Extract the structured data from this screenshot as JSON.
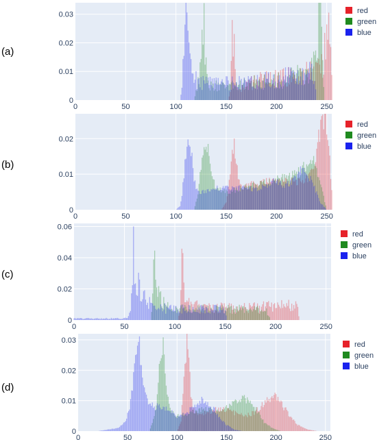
{
  "figure": {
    "colors": {
      "red": "#e6222a",
      "green": "#1f8a1f",
      "blue": "#1a22ee",
      "plot_bg": "#e5ecf6",
      "grid": "#ffffff"
    },
    "legend_entries": [
      "red",
      "green",
      "blue"
    ]
  },
  "chart_data": [
    {
      "type": "bar",
      "label": "(a)",
      "xlim": [
        0,
        255
      ],
      "ylim": [
        0,
        0.034
      ],
      "xticks": [
        0,
        50,
        100,
        150,
        200,
        250
      ],
      "yticks": [
        0,
        0.01,
        0.02,
        0.03
      ],
      "ytick_labels": [
        "0",
        "0.01",
        "0.02",
        "0.03"
      ],
      "series": [
        {
          "name": "red",
          "color": "#e6222a",
          "x": [
            152,
            154,
            156,
            158,
            160,
            165,
            175,
            185,
            195,
            205,
            215,
            225,
            235,
            240,
            245,
            248,
            250,
            252,
            254,
            255
          ],
          "values": [
            0,
            0.004,
            0.02,
            0.018,
            0.004,
            0.005,
            0.006,
            0.007,
            0.007,
            0.008,
            0.008,
            0.009,
            0.01,
            0.01,
            0.012,
            0.018,
            0.025,
            0.03,
            0.028,
            0.01
          ]
        },
        {
          "name": "green",
          "color": "#1f8a1f",
          "x": [
            118,
            122,
            125,
            127,
            129,
            131,
            135,
            145,
            155,
            165,
            175,
            185,
            195,
            205,
            215,
            225,
            232,
            236,
            240,
            242,
            244,
            246,
            248
          ],
          "values": [
            0,
            0.006,
            0.012,
            0.031,
            0.02,
            0.007,
            0.005,
            0.005,
            0.005,
            0.005,
            0.006,
            0.006,
            0.007,
            0.007,
            0.008,
            0.009,
            0.01,
            0.012,
            0.02,
            0.03,
            0.03,
            0.012,
            0
          ]
        },
        {
          "name": "blue",
          "color": "#1a22ee",
          "x": [
            104,
            106,
            108,
            110,
            112,
            114,
            116,
            120,
            130,
            140,
            150,
            160,
            170,
            180,
            190,
            200,
            210,
            220,
            228,
            232,
            236,
            238,
            240
          ],
          "values": [
            0,
            0.004,
            0.016,
            0.026,
            0.021,
            0.012,
            0.008,
            0.007,
            0.006,
            0.006,
            0.006,
            0.006,
            0.006,
            0.006,
            0.007,
            0.007,
            0.008,
            0.008,
            0.009,
            0.01,
            0.011,
            0.006,
            0
          ]
        }
      ]
    },
    {
      "type": "bar",
      "label": "(b)",
      "xlim": [
        0,
        255
      ],
      "ylim": [
        0,
        0.027
      ],
      "xticks": [
        0,
        50,
        100,
        150,
        200,
        250
      ],
      "yticks": [
        0,
        0.01,
        0.02
      ],
      "ytick_labels": [
        "0",
        "0.01",
        "0.02"
      ],
      "series": [
        {
          "name": "red",
          "color": "#e6222a",
          "x": [
            145,
            150,
            153,
            156,
            158,
            160,
            163,
            166,
            175,
            190,
            205,
            220,
            232,
            238,
            242,
            245,
            248,
            250,
            252,
            254,
            255
          ],
          "values": [
            0,
            0.002,
            0.008,
            0.016,
            0.019,
            0.014,
            0.008,
            0.006,
            0.007,
            0.008,
            0.008,
            0.008,
            0.009,
            0.013,
            0.02,
            0.025,
            0.026,
            0.024,
            0.018,
            0.01,
            0.006
          ]
        },
        {
          "name": "green",
          "color": "#1f8a1f",
          "x": [
            118,
            122,
            125,
            128,
            130,
            132,
            135,
            140,
            150,
            165,
            180,
            195,
            205,
            212,
            220,
            228,
            235,
            240,
            245,
            250
          ],
          "values": [
            0,
            0.004,
            0.012,
            0.018,
            0.02,
            0.017,
            0.01,
            0.006,
            0.005,
            0.006,
            0.007,
            0.008,
            0.009,
            0.009,
            0.01,
            0.012,
            0.014,
            0.012,
            0.006,
            0
          ]
        },
        {
          "name": "blue",
          "color": "#1a22ee",
          "x": [
            100,
            104,
            106,
            108,
            110,
            112,
            114,
            116,
            118,
            122,
            130,
            140,
            150,
            160,
            170,
            180,
            190,
            198,
            205,
            212,
            220,
            226,
            232,
            238,
            244,
            250
          ],
          "values": [
            0,
            0.001,
            0.004,
            0.01,
            0.016,
            0.021,
            0.02,
            0.014,
            0.008,
            0.005,
            0.005,
            0.006,
            0.006,
            0.006,
            0.006,
            0.006,
            0.007,
            0.008,
            0.007,
            0.007,
            0.009,
            0.012,
            0.01,
            0.006,
            0.002,
            0
          ]
        }
      ]
    },
    {
      "type": "bar",
      "label": "(c)",
      "xlim": [
        0,
        255
      ],
      "ylim": [
        0,
        0.062
      ],
      "xticks": [
        0,
        50,
        100,
        150,
        200,
        250
      ],
      "yticks": [
        0,
        0.02,
        0.04,
        0.06
      ],
      "ytick_labels": [
        "0",
        "0.02",
        "0.04",
        "0.06"
      ],
      "series": [
        {
          "name": "red",
          "color": "#e6222a",
          "x": [
            103,
            105,
            107,
            108,
            109,
            111,
            114,
            120,
            130,
            140,
            150,
            160,
            170,
            180,
            190,
            200,
            210,
            218,
            222,
            224
          ],
          "values": [
            0,
            0.01,
            0.056,
            0.045,
            0.022,
            0.012,
            0.01,
            0.009,
            0.008,
            0.008,
            0.008,
            0.008,
            0.008,
            0.008,
            0.009,
            0.009,
            0.009,
            0.009,
            0.008,
            0
          ]
        },
        {
          "name": "green",
          "color": "#1f8a1f",
          "x": [
            76,
            78,
            80,
            81,
            82,
            84,
            87,
            90,
            95,
            105,
            120,
            135,
            150,
            165,
            180,
            190,
            195
          ],
          "values": [
            0,
            0.012,
            0.05,
            0.038,
            0.024,
            0.02,
            0.014,
            0.01,
            0.008,
            0.007,
            0.007,
            0.007,
            0.007,
            0.007,
            0.007,
            0.007,
            0
          ]
        },
        {
          "name": "blue",
          "color": "#1a22ee",
          "x": [
            0,
            10,
            20,
            30,
            40,
            50,
            54,
            56,
            58,
            59,
            60,
            62,
            64,
            67,
            70,
            75,
            85,
            95,
            105,
            115,
            125,
            135,
            145,
            150,
            152
          ],
          "values": [
            0.001,
            0.001,
            0.001,
            0.001,
            0.001,
            0.001,
            0.002,
            0.01,
            0.03,
            0.056,
            0.04,
            0.028,
            0.022,
            0.02,
            0.017,
            0.012,
            0.008,
            0.007,
            0.007,
            0.007,
            0.007,
            0.007,
            0.007,
            0.006,
            0
          ]
        }
      ]
    },
    {
      "type": "bar",
      "label": "(d)",
      "xlim": [
        0,
        255
      ],
      "ylim": [
        0,
        0.032
      ],
      "xticks": [
        0,
        50,
        100,
        150,
        200,
        250
      ],
      "yticks": [
        0,
        0.01,
        0.02,
        0.03
      ],
      "ytick_labels": [
        "0",
        "0.01",
        "0.02",
        "0.03"
      ],
      "series": [
        {
          "name": "red",
          "color": "#e6222a",
          "x": [
            100,
            104,
            106,
            108,
            110,
            112,
            114,
            116,
            120,
            128,
            138,
            148,
            158,
            168,
            178,
            188,
            196,
            200,
            204,
            212,
            222,
            232,
            242
          ],
          "values": [
            0,
            0.003,
            0.012,
            0.022,
            0.029,
            0.022,
            0.012,
            0.007,
            0.006,
            0.006,
            0.007,
            0.007,
            0.006,
            0.005,
            0.006,
            0.009,
            0.011,
            0.011,
            0.01,
            0.006,
            0.002,
            0.0005,
            0
          ]
        },
        {
          "name": "green",
          "color": "#1f8a1f",
          "x": [
            72,
            78,
            82,
            84,
            86,
            88,
            90,
            94,
            102,
            112,
            122,
            132,
            142,
            152,
            160,
            166,
            172,
            180,
            188,
            196,
            205
          ],
          "values": [
            0,
            0.006,
            0.02,
            0.027,
            0.028,
            0.022,
            0.012,
            0.006,
            0.005,
            0.006,
            0.007,
            0.007,
            0.007,
            0.008,
            0.01,
            0.011,
            0.01,
            0.007,
            0.003,
            0.001,
            0
          ]
        },
        {
          "name": "blue",
          "color": "#1a22ee",
          "x": [
            20,
            30,
            40,
            48,
            52,
            56,
            58,
            60,
            62,
            64,
            66,
            70,
            76,
            82,
            90,
            100,
            110,
            120,
            126,
            132,
            140,
            150,
            158,
            166
          ],
          "values": [
            0,
            0.0005,
            0.001,
            0.003,
            0.008,
            0.018,
            0.025,
            0.029,
            0.028,
            0.022,
            0.016,
            0.01,
            0.008,
            0.008,
            0.007,
            0.005,
            0.006,
            0.009,
            0.01,
            0.009,
            0.006,
            0.002,
            0.0005,
            0
          ]
        }
      ]
    }
  ]
}
